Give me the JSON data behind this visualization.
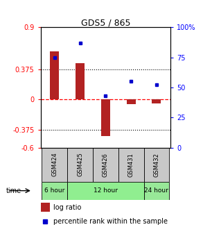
{
  "title": "GDS5 / 865",
  "samples": [
    "GSM424",
    "GSM425",
    "GSM426",
    "GSM431",
    "GSM432"
  ],
  "log_ratio": [
    0.6,
    0.45,
    -0.46,
    -0.06,
    -0.05
  ],
  "percentile": [
    75,
    87,
    43,
    55,
    52
  ],
  "ylim_left": [
    -0.6,
    0.9
  ],
  "ylim_right": [
    0,
    100
  ],
  "yticks_left": [
    -0.6,
    -0.375,
    0,
    0.375,
    0.9
  ],
  "ytick_labels_left": [
    "-0.6",
    "-0.375",
    "0",
    "0.375",
    "0.9"
  ],
  "yticks_right": [
    0,
    25,
    50,
    75,
    100
  ],
  "ytick_labels_right": [
    "0",
    "25",
    "50",
    "75",
    "100%"
  ],
  "hlines": [
    0.375,
    -0.375
  ],
  "bar_color": "#B22222",
  "dot_color": "#0000CC",
  "sample_bg_color": "#C8C8C8",
  "bar_width": 0.35,
  "time_labels": [
    "6 hour",
    "12 hour",
    "24 hour"
  ],
  "time_fill": [
    "#98E898",
    "#90EE90",
    "#98E898"
  ],
  "span_ranges": [
    [
      0,
      1
    ],
    [
      1,
      4
    ],
    [
      4,
      5
    ]
  ]
}
